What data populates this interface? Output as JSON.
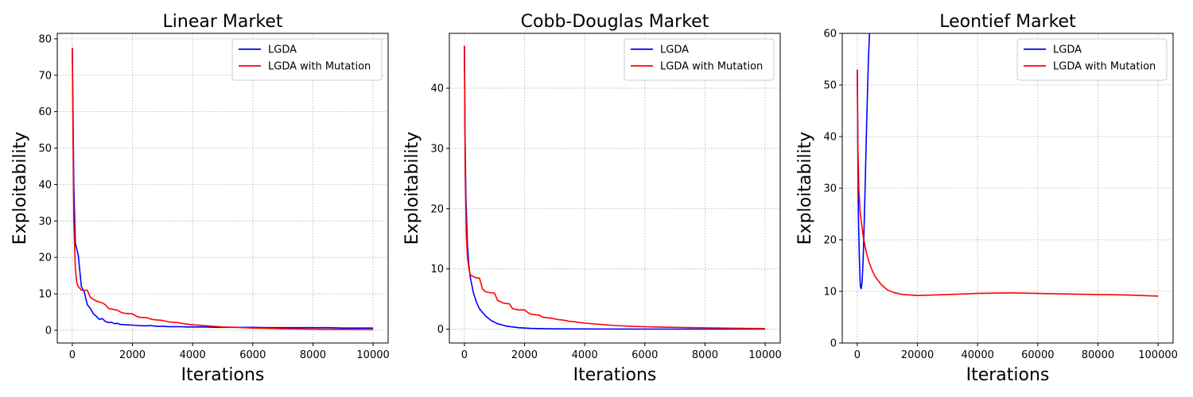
{
  "chart_data": [
    {
      "type": "line",
      "title": "Linear Market",
      "xlabel": "Iterations",
      "ylabel": "Exploitability",
      "xlim": [
        -500,
        10500
      ],
      "ylim": [
        -3.5,
        81.5
      ],
      "xticks": [
        0,
        2000,
        4000,
        6000,
        8000,
        10000
      ],
      "yticks": [
        0,
        10,
        20,
        30,
        40,
        50,
        60,
        70,
        80
      ],
      "grid": true,
      "legend_position": "top-right",
      "series": [
        {
          "name": "LGDA",
          "color": "#0000ff",
          "x": [
            0,
            50,
            100,
            200,
            300,
            400,
            500,
            600,
            700,
            800,
            900,
            1000,
            1100,
            1200,
            1300,
            1400,
            1500,
            1600,
            1800,
            2000,
            2200,
            2400,
            2600,
            2800,
            3000,
            3200,
            3400,
            3600,
            3800,
            4000,
            4400,
            4800,
            5200,
            5600,
            6000,
            6500,
            7000,
            7500,
            8000,
            8500,
            9000,
            9500,
            10000
          ],
          "y": [
            77.5,
            40,
            24,
            20.5,
            12,
            10.5,
            7,
            6,
            4.5,
            3.8,
            3,
            3.2,
            2.4,
            2.1,
            2.2,
            1.8,
            1.9,
            1.6,
            1.5,
            1.4,
            1.3,
            1.2,
            1.3,
            1.1,
            1.1,
            1.0,
            1.0,
            1.0,
            0.9,
            0.9,
            0.9,
            0.8,
            0.8,
            0.8,
            0.8,
            0.7,
            0.7,
            0.7,
            0.7,
            0.7,
            0.6,
            0.6,
            0.6
          ]
        },
        {
          "name": "LGDA with Mutation",
          "color": "#ff0000",
          "x": [
            0,
            50,
            100,
            150,
            200,
            300,
            400,
            500,
            550,
            600,
            700,
            800,
            1000,
            1100,
            1200,
            1500,
            1600,
            1700,
            2000,
            2100,
            2200,
            2500,
            2600,
            2700,
            3000,
            3200,
            3500,
            3700,
            4000,
            4500,
            5000,
            5500,
            6000,
            6500,
            7000,
            8000,
            9000,
            10000
          ],
          "y": [
            77.5,
            30,
            17,
            13,
            12,
            11,
            11,
            11,
            10,
            9,
            8.5,
            8,
            7.5,
            7,
            6,
            5.5,
            5,
            4.7,
            4.5,
            4,
            3.6,
            3.4,
            3.1,
            2.9,
            2.7,
            2.3,
            2.1,
            1.8,
            1.5,
            1.2,
            0.9,
            0.8,
            0.6,
            0.5,
            0.4,
            0.3,
            0.25,
            0.2
          ]
        }
      ]
    },
    {
      "type": "line",
      "title": "Cobb-Douglas Market",
      "xlabel": "Iterations",
      "ylabel": "Exploitability",
      "xlim": [
        -500,
        10500
      ],
      "ylim": [
        -2.3,
        49.1
      ],
      "xticks": [
        0,
        2000,
        4000,
        6000,
        8000,
        10000
      ],
      "yticks": [
        0,
        10,
        20,
        30,
        40
      ],
      "grid": true,
      "legend_position": "top-right",
      "series": [
        {
          "name": "LGDA",
          "color": "#0000ff",
          "x": [
            0,
            20,
            50,
            100,
            150,
            200,
            300,
            400,
            500,
            700,
            900,
            1100,
            1400,
            1800,
            2200,
            2600,
            3000,
            4000,
            5000,
            7000,
            10000
          ],
          "y": [
            47,
            32,
            22,
            14,
            10.5,
            8.5,
            6,
            4.5,
            3.4,
            2.2,
            1.4,
            0.9,
            0.5,
            0.25,
            0.12,
            0.08,
            0.05,
            0.03,
            0.02,
            0.01,
            0.01
          ],
          "note": ""
        },
        {
          "name": "LGDA with Mutation",
          "color": "#ff0000",
          "x": [
            0,
            30,
            60,
            100,
            150,
            200,
            300,
            400,
            500,
            600,
            700,
            900,
            1000,
            1100,
            1300,
            1500,
            1600,
            1800,
            2000,
            2100,
            2200,
            2500,
            2600,
            2900,
            3100,
            3300,
            3500,
            3700,
            4000,
            4500,
            5000,
            5500,
            6000,
            6500,
            7000,
            8000,
            9000,
            10000
          ],
          "y": [
            47,
            26,
            16,
            12,
            10,
            9,
            8.7,
            8.5,
            8.5,
            6.7,
            6.2,
            6.0,
            6.0,
            4.8,
            4.3,
            4.2,
            3.4,
            3.2,
            3.2,
            2.8,
            2.5,
            2.3,
            2.0,
            1.8,
            1.6,
            1.5,
            1.3,
            1.2,
            1.0,
            0.8,
            0.6,
            0.5,
            0.4,
            0.35,
            0.3,
            0.22,
            0.15,
            0.1
          ]
        }
      ]
    },
    {
      "type": "line",
      "title": "Leontief Market",
      "xlabel": "Iterations",
      "ylabel": "Exploitability",
      "xlim": [
        -5000,
        105000
      ],
      "ylim": [
        0,
        60
      ],
      "xticks": [
        0,
        20000,
        40000,
        60000,
        80000,
        100000
      ],
      "yticks": [
        0,
        10,
        20,
        30,
        40,
        50,
        60
      ],
      "grid": true,
      "legend_position": "top-right",
      "series": [
        {
          "name": "LGDA",
          "color": "#0000ff",
          "x": [
            0,
            200,
            400,
            700,
            1000,
            1300,
            1600,
            1900,
            2200,
            2500,
            2800,
            3100,
            3400,
            3700,
            4000,
            4300
          ],
          "y": [
            53,
            35,
            24,
            16,
            11,
            10.5,
            12,
            15.5,
            21,
            28,
            35,
            42,
            49,
            55,
            59,
            65
          ]
        },
        {
          "name": "LGDA with Mutation",
          "color": "#ff0000",
          "x": [
            0,
            200,
            500,
            1000,
            2000,
            3000,
            4000,
            5000,
            6000,
            8000,
            10000,
            12000,
            15000,
            20000,
            25000,
            30000,
            40000,
            50000,
            60000,
            70000,
            80000,
            90000,
            100000
          ],
          "y": [
            53,
            38,
            30,
            25,
            20.5,
            17.5,
            15.5,
            14,
            12.8,
            11.3,
            10.3,
            9.8,
            9.4,
            9.2,
            9.3,
            9.4,
            9.6,
            9.7,
            9.6,
            9.5,
            9.4,
            9.3,
            9.1
          ]
        }
      ]
    }
  ]
}
